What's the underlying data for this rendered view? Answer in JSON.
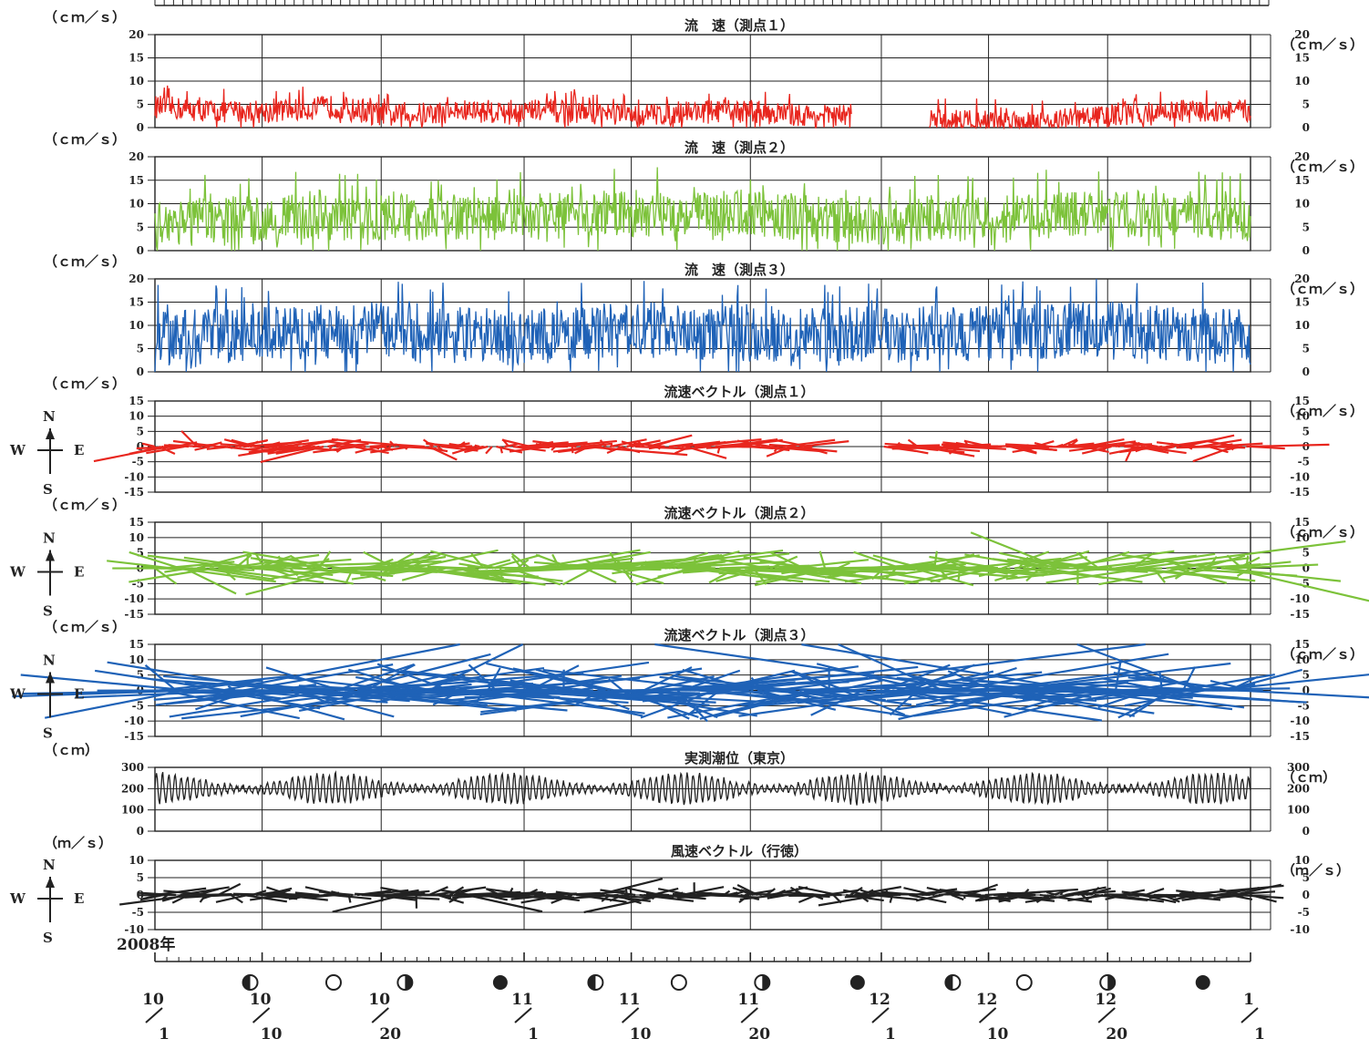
{
  "year_label": "2008年",
  "x_date_labels": [
    {
      "top": "10",
      "bottom": "1"
    },
    {
      "top": "10",
      "bottom": "10"
    },
    {
      "top": "10",
      "bottom": "20"
    },
    {
      "top": "11",
      "bottom": "1"
    },
    {
      "top": "11",
      "bottom": "10"
    },
    {
      "top": "11",
      "bottom": "20"
    },
    {
      "top": "12",
      "bottom": "1"
    },
    {
      "top": "12",
      "bottom": "10"
    },
    {
      "top": "12",
      "bottom": "20"
    },
    {
      "top": "1",
      "bottom": "1"
    }
  ],
  "moon_phases": [
    {
      "day": 8,
      "phase": "first-quarter"
    },
    {
      "day": 15,
      "phase": "full"
    },
    {
      "day": 21,
      "phase": "last-quarter"
    },
    {
      "day": 29,
      "phase": "new"
    },
    {
      "day": 37,
      "phase": "first-quarter"
    },
    {
      "day": 44,
      "phase": "full"
    },
    {
      "day": 51,
      "phase": "last-quarter"
    },
    {
      "day": 59,
      "phase": "new"
    },
    {
      "day": 67,
      "phase": "first-quarter"
    },
    {
      "day": 73,
      "phase": "full"
    },
    {
      "day": 80,
      "phase": "last-quarter"
    },
    {
      "day": 88,
      "phase": "new"
    }
  ],
  "compass": {
    "n": "N",
    "s": "S",
    "e": "E",
    "w": "W"
  },
  "colors": {
    "station1": "#e8261e",
    "station2": "#7cc23a",
    "station3": "#1f62b7",
    "tide": "#222222",
    "wind": "#222222",
    "grid": "#222222"
  },
  "chart_data": [
    {
      "type": "line",
      "title": "流　速（測点１）",
      "unit_left": "（ｃｍ／ｓ）",
      "unit_right": "（ｃｍ／ｓ）",
      "yticks": [
        0,
        5,
        10,
        15,
        20
      ],
      "ylim": [
        0,
        20
      ],
      "color_key": "station1",
      "mean": 3.2,
      "amp": 2.5,
      "gaps": [
        [
          58.5,
          65
        ]
      ],
      "series": [
        {
          "x": [
            0,
            5,
            10,
            15,
            20,
            25,
            30,
            35,
            40,
            45,
            50,
            55,
            58
          ],
          "values": [
            4,
            3,
            3,
            4,
            2,
            3,
            3,
            3,
            2,
            3,
            3,
            2,
            2
          ]
        },
        {
          "x": [
            65,
            70,
            75,
            80,
            85,
            90,
            92
          ],
          "values": [
            1,
            1,
            1,
            2,
            3,
            3,
            3
          ]
        }
      ]
    },
    {
      "type": "line",
      "title": "流　速（測点２）",
      "unit_left": "（ｃｍ／ｓ）",
      "unit_right": "（ｃｍ／ｓ）",
      "yticks": [
        0,
        5,
        10,
        15,
        20
      ],
      "ylim": [
        0,
        20
      ],
      "color_key": "station2",
      "mean": 6,
      "amp": 5,
      "gaps": [],
      "series": [
        {
          "x": [
            0,
            10,
            20,
            30,
            40,
            50,
            60,
            70,
            80,
            92
          ],
          "values": [
            5,
            6,
            6,
            6,
            7,
            7,
            5,
            6,
            7,
            6
          ]
        }
      ]
    },
    {
      "type": "line",
      "title": "流　速（測点３）",
      "unit_left": "（ｃｍ／ｓ）",
      "unit_right": "（ｃｍ／ｓ）",
      "yticks": [
        0,
        5,
        10,
        15,
        20
      ],
      "ylim": [
        0,
        20
      ],
      "color_key": "station3",
      "mean": 7,
      "amp": 6,
      "gaps": [],
      "series": [
        {
          "x": [
            0,
            10,
            20,
            30,
            40,
            50,
            60,
            70,
            80,
            92
          ],
          "values": [
            6,
            7,
            8,
            6,
            8,
            7,
            7,
            7,
            8,
            6
          ]
        }
      ]
    },
    {
      "type": "vector",
      "title": "流速ベクトル（測点１）",
      "unit_left": "（ｃｍ／ｓ）",
      "unit_right": "（ｃｍ／ｓ）",
      "yticks": [
        -15,
        -10,
        -5,
        0,
        5,
        10,
        15
      ],
      "ylim": [
        -15,
        15
      ],
      "color_key": "station1",
      "amp": 3,
      "gaps": [
        [
          55.5,
          61
        ]
      ],
      "compass": true
    },
    {
      "type": "vector",
      "title": "流速ベクトル（測点２）",
      "unit_left": "（ｃｍ／ｓ）",
      "unit_right": "（ｃｍ／ｓ）",
      "yticks": [
        -15,
        -10,
        -5,
        0,
        5,
        10,
        15
      ],
      "ylim": [
        -15,
        15
      ],
      "color_key": "station2",
      "amp": 7,
      "gaps": [],
      "compass": true
    },
    {
      "type": "vector",
      "title": "流速ベクトル（測点３）",
      "unit_left": "（ｃｍ／ｓ）",
      "unit_right": "（ｃｍ／ｓ）",
      "yticks": [
        -15,
        -10,
        -5,
        0,
        5,
        10,
        15
      ],
      "ylim": [
        -15,
        15
      ],
      "color_key": "station3",
      "amp": 12,
      "gaps": [],
      "compass": true
    },
    {
      "type": "line",
      "title": "実測潮位（東京）",
      "unit_left": "（ｃｍ）",
      "unit_right": "（ｃｍ）",
      "yticks": [
        0,
        100,
        200,
        300
      ],
      "ylim": [
        0,
        300
      ],
      "color_key": "tide",
      "mean": 200,
      "amp": 70,
      "tidal": true,
      "gaps": []
    },
    {
      "type": "vector",
      "title": "風速ベクトル（行徳）",
      "unit_left": "（ｍ／ｓ）",
      "unit_right": "（ｍ／ｓ）",
      "yticks": [
        -10,
        -5,
        0,
        5,
        10
      ],
      "ylim": [
        -10,
        10
      ],
      "color_key": "wind",
      "amp": 3,
      "gaps": [],
      "compass": true
    }
  ]
}
